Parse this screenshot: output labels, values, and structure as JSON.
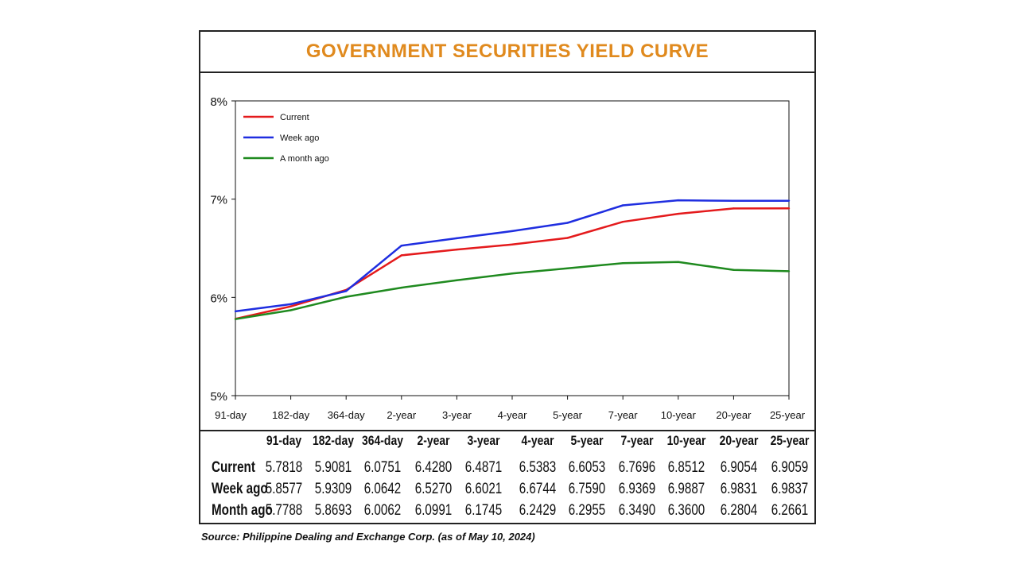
{
  "source": "Source: Philippine Dealing and Exchange Corp. (as of May 10, 2024)",
  "chart_data": {
    "type": "line",
    "title": "GOVERNMENT SECURITIES YIELD CURVE",
    "categories": [
      "91-day",
      "182-day",
      "364-day",
      "2-year",
      "3-year",
      "4-year",
      "5-year",
      "7-year",
      "10-year",
      "20-year",
      "25-year"
    ],
    "table_headers": [
      "91-day",
      "182-day",
      "364-day",
      "2-year",
      "3-year",
      "4-year",
      "5-year",
      "7-year",
      "10-year",
      "20-year",
      "25-year"
    ],
    "y_ticks": [
      "8%",
      "7%",
      "6%",
      "5%"
    ],
    "ylim": [
      5,
      8
    ],
    "legend_position": "top-left",
    "series": [
      {
        "name": "Current",
        "table_label": "Current",
        "color": "#e41a1c",
        "values": [
          5.7818,
          5.9081,
          6.0751,
          6.428,
          6.4871,
          6.5383,
          6.6053,
          6.7696,
          6.8512,
          6.9054,
          6.9059
        ],
        "display": [
          "5.7818",
          "5.9081",
          "6.0751",
          "6.4280",
          "6.4871",
          "6.5383",
          "6.6053",
          "6.7696",
          "6.8512",
          "6.9054",
          "6.9059"
        ]
      },
      {
        "name": "Week ago",
        "table_label": "Week ago",
        "color": "#1f2ee0",
        "values": [
          5.8577,
          5.9309,
          6.0642,
          6.527,
          6.6021,
          6.6744,
          6.759,
          6.9369,
          6.9887,
          6.9831,
          6.9837
        ],
        "display": [
          "5.8577",
          "5.9309",
          "6.0642",
          "6.5270",
          "6.6021",
          "6.6744",
          "6.7590",
          "6.9369",
          "6.9887",
          "6.9831",
          "6.9837"
        ]
      },
      {
        "name": "A month ago",
        "table_label": "Month ago",
        "color": "#1f8a1f",
        "values": [
          5.7788,
          5.8693,
          6.0062,
          6.0991,
          6.1745,
          6.2429,
          6.2955,
          6.349,
          6.36,
          6.2804,
          6.2661
        ],
        "display": [
          "5.7788",
          "5.8693",
          "6.0062",
          "6.0991",
          "6.1745",
          "6.2429",
          "6.2955",
          "6.3490",
          "6.3600",
          "6.2804",
          "6.2661"
        ]
      }
    ]
  }
}
